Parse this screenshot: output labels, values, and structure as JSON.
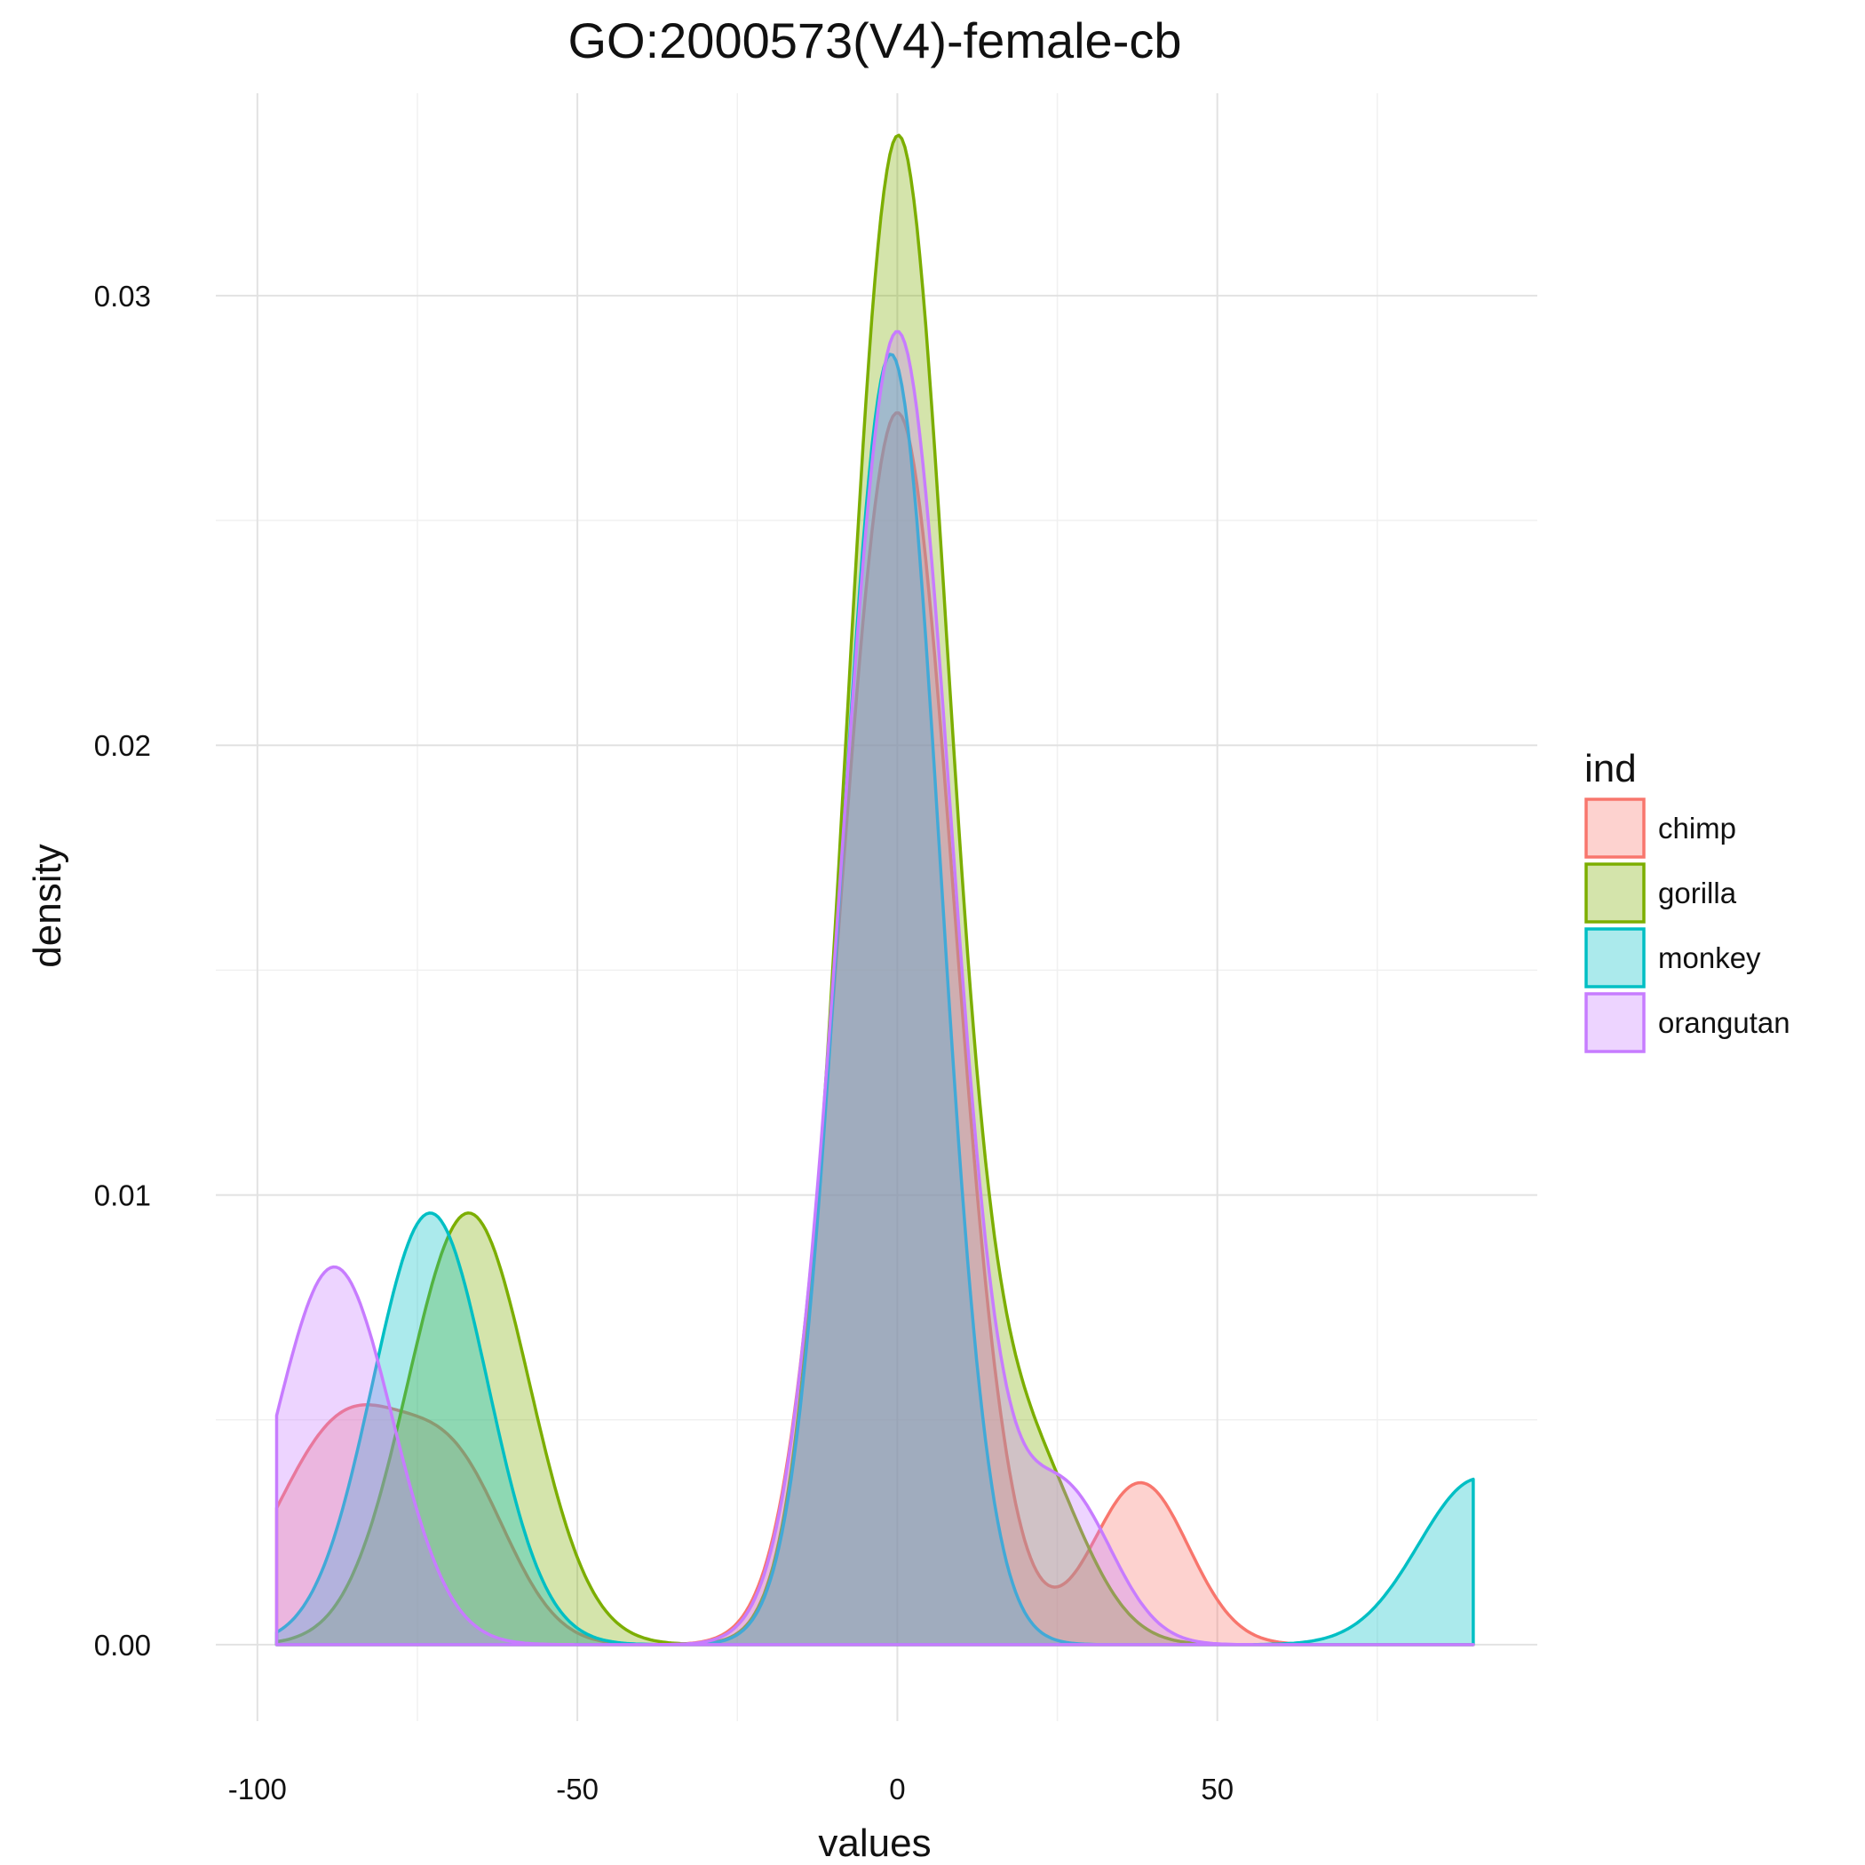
{
  "chart_data": {
    "type": "area",
    "subtype": "density",
    "title": "GO:2000573(V4)-female-cb",
    "xlabel": "values",
    "ylabel": "density",
    "xlim": [
      -106.5,
      100
    ],
    "ylim": [
      -0.0017,
      0.0345
    ],
    "x_ticks": [
      -100,
      -50,
      0,
      50
    ],
    "x_tick_labels": [
      "-100",
      "-50",
      "0",
      "50"
    ],
    "y_ticks": [
      0,
      0.01,
      0.02,
      0.03
    ],
    "y_tick_labels": [
      "0.00",
      "0.01",
      "0.02",
      "0.03"
    ],
    "x_minor_ticks": [
      -75,
      -25,
      25,
      75
    ],
    "y_minor_ticks": [
      0.005,
      0.015,
      0.025
    ],
    "grid": true,
    "legend": {
      "title": "ind",
      "position": "right"
    },
    "x_range": [
      -97,
      90
    ],
    "series": [
      {
        "name": "chimp",
        "color": "#F8766D",
        "components": [
          {
            "mu": -86,
            "sigma": 11.0,
            "height": 0.005
          },
          {
            "mu": -68,
            "sigma": 8.0,
            "height": 0.003
          },
          {
            "mu": 0,
            "sigma": 8.8,
            "height": 0.0274
          },
          {
            "mu": 38,
            "sigma": 7.5,
            "height": 0.0036
          }
        ]
      },
      {
        "name": "gorilla",
        "color": "#7CAE00",
        "components": [
          {
            "mu": -67,
            "sigma": 9.5,
            "height": 0.0096
          },
          {
            "mu": 0,
            "sigma": 8.0,
            "height": 0.0333
          },
          {
            "mu": 20,
            "sigma": 8.5,
            "height": 0.0042
          }
        ]
      },
      {
        "name": "monkey",
        "color": "#00BFC4",
        "components": [
          {
            "mu": -73,
            "sigma": 9.0,
            "height": 0.0096
          },
          {
            "mu": -1,
            "sigma": 7.7,
            "height": 0.0287
          },
          {
            "mu": 91,
            "sigma": 9.5,
            "height": 0.0037
          }
        ]
      },
      {
        "name": "orangutan",
        "color": "#C77CFF",
        "components": [
          {
            "mu": -88,
            "sigma": 9.0,
            "height": 0.0084
          },
          {
            "mu": 0,
            "sigma": 8.6,
            "height": 0.0292
          },
          {
            "mu": 26,
            "sigma": 7.5,
            "height": 0.0034
          }
        ]
      }
    ]
  }
}
